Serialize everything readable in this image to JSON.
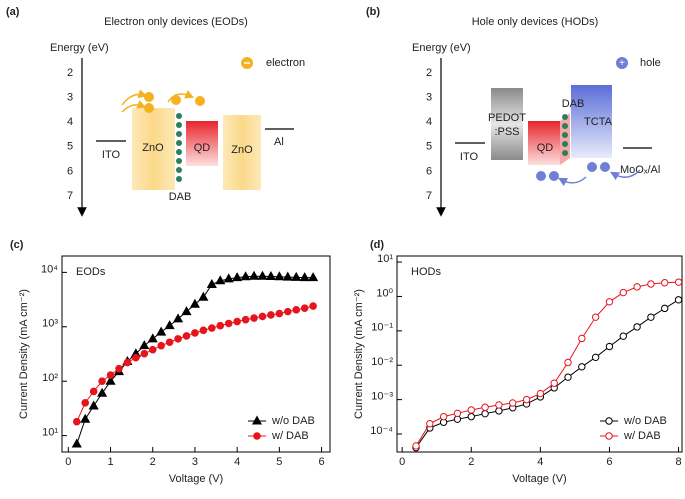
{
  "diagrams": [
    {
      "panel_label": "(a)",
      "title": "Electron only devices (EODs)",
      "axis_label": "Energy (eV)",
      "energy_ticks": [
        2,
        3,
        4,
        5,
        6,
        7
      ],
      "legend": "electron",
      "layers": [
        "ITO",
        "ZnO",
        "QD",
        "ZnO",
        "Al"
      ],
      "interlayer": "DAB"
    },
    {
      "panel_label": "(b)",
      "title": "Hole only devices (HODs)",
      "axis_label": "Energy (eV)",
      "energy_ticks": [
        2,
        3,
        4,
        5,
        6,
        7
      ],
      "legend": "hole",
      "layers": [
        "ITO",
        "PEDOT",
        ":PSS",
        "QD",
        "TCTA",
        "MoOₓ/Al"
      ],
      "interlayer": "DAB"
    }
  ],
  "chart_data": [
    {
      "type": "line",
      "panel_label": "(c)",
      "annotation": "EODs",
      "x_label": "Voltage (V)",
      "y_label": "Current Density (mA cm⁻²)",
      "y_scale": "log",
      "xlim": [
        -0.15,
        6.2
      ],
      "xticks": [
        0,
        1,
        2,
        3,
        4,
        5,
        6
      ],
      "ylim": [
        5,
        20000
      ],
      "yticks": [
        {
          "value": 10,
          "label": "10¹"
        },
        {
          "value": 100,
          "label": "10²"
        },
        {
          "value": 1000,
          "label": "10³"
        },
        {
          "value": 10000,
          "label": "10⁴"
        }
      ],
      "legend": "lower right",
      "series": [
        {
          "name": "w/o DAB",
          "color": "#000000",
          "marker": "triangle",
          "filled": true,
          "x": [
            0.2,
            0.4,
            0.6,
            0.8,
            1.0,
            1.2,
            1.4,
            1.6,
            1.8,
            2.0,
            2.2,
            2.4,
            2.6,
            2.8,
            3.0,
            3.2,
            3.4,
            3.6,
            3.8,
            4.0,
            4.2,
            4.4,
            4.6,
            4.8,
            5.0,
            5.2,
            5.4,
            5.6,
            5.8
          ],
          "values": [
            7,
            20,
            35,
            60,
            100,
            150,
            230,
            320,
            450,
            600,
            800,
            1050,
            1400,
            1900,
            2600,
            3500,
            6000,
            7000,
            7600,
            8000,
            8300,
            8500,
            8500,
            8400,
            8300,
            8200,
            8100,
            8000,
            8000
          ]
        },
        {
          "name": "w/ DAB",
          "color": "#e8141c",
          "marker": "circle",
          "filled": true,
          "x": [
            0.2,
            0.4,
            0.6,
            0.8,
            1.0,
            1.2,
            1.4,
            1.6,
            1.8,
            2.0,
            2.2,
            2.4,
            2.6,
            2.8,
            3.0,
            3.2,
            3.4,
            3.6,
            3.8,
            4.0,
            4.2,
            4.4,
            4.6,
            4.8,
            5.0,
            5.2,
            5.4,
            5.6,
            5.8
          ],
          "values": [
            18,
            40,
            65,
            100,
            130,
            170,
            220,
            270,
            320,
            380,
            450,
            520,
            600,
            680,
            770,
            860,
            950,
            1050,
            1150,
            1250,
            1350,
            1450,
            1550,
            1650,
            1750,
            1900,
            2050,
            2200,
            2400
          ]
        }
      ]
    },
    {
      "type": "line",
      "panel_label": "(d)",
      "annotation": "HODs",
      "x_label": "Voltage (V)",
      "y_label": "Current Density (mA cm⁻²)",
      "y_scale": "log",
      "xlim": [
        -0.15,
        8.1
      ],
      "xticks": [
        0,
        2,
        4,
        6,
        8
      ],
      "ylim": [
        3e-05,
        15
      ],
      "yticks": [
        {
          "value": 0.0001,
          "label": "10⁻⁴"
        },
        {
          "value": 0.001,
          "label": "10⁻³"
        },
        {
          "value": 0.01,
          "label": "10⁻²"
        },
        {
          "value": 0.1,
          "label": "10⁻¹"
        },
        {
          "value": 1,
          "label": "10⁰"
        },
        {
          "value": 10,
          "label": "10¹"
        }
      ],
      "legend": "lower right",
      "series": [
        {
          "name": "w/o DAB",
          "color": "#000000",
          "marker": "circle",
          "filled": false,
          "x": [
            0.4,
            0.8,
            1.2,
            1.6,
            2.0,
            2.4,
            2.8,
            3.2,
            3.6,
            4.0,
            4.4,
            4.8,
            5.2,
            5.6,
            6.0,
            6.4,
            6.8,
            7.2,
            7.6,
            8.0
          ],
          "values": [
            4e-05,
            0.00015,
            0.00022,
            0.00027,
            0.00032,
            0.00039,
            0.00047,
            0.00058,
            0.00075,
            0.0012,
            0.0022,
            0.0045,
            0.009,
            0.017,
            0.035,
            0.07,
            0.13,
            0.25,
            0.45,
            0.8
          ]
        },
        {
          "name": "w/ DAB",
          "color": "#e8141c",
          "marker": "circle",
          "filled": false,
          "x": [
            0.4,
            0.8,
            1.2,
            1.6,
            2.0,
            2.4,
            2.8,
            3.2,
            3.6,
            4.0,
            4.4,
            4.8,
            5.2,
            5.6,
            6.0,
            6.4,
            6.8,
            7.2,
            7.6,
            8.0
          ],
          "values": [
            4.5e-05,
            0.0002,
            0.00032,
            0.0004,
            0.0005,
            0.0006,
            0.0007,
            0.0008,
            0.001,
            0.0015,
            0.003,
            0.012,
            0.06,
            0.25,
            0.7,
            1.3,
            1.9,
            2.3,
            2.5,
            2.6
          ]
        }
      ]
    }
  ]
}
